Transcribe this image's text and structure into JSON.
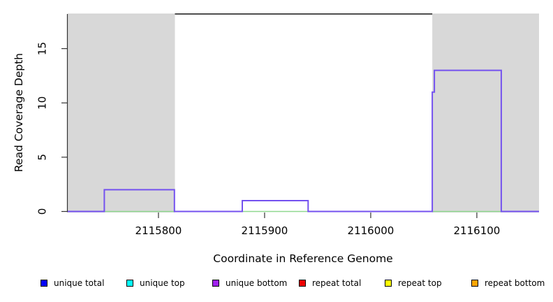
{
  "chart_data": {
    "type": "line",
    "subtype": "step-coverage",
    "title": "",
    "xlabel": "Coordinate in Reference Genome",
    "ylabel": "Read Coverage Depth",
    "xlim": [
      2115714.5,
      2116158.6
    ],
    "ylim": [
      0,
      18.19
    ],
    "x_ticks": [
      2115800,
      2115900,
      2116000,
      2116100
    ],
    "y_ticks": [
      0,
      5,
      10,
      15
    ],
    "grid": false,
    "legend_position": "bottom",
    "shaded_regions": [
      {
        "name": "left-shaded-region",
        "x0": 2115714.5,
        "x1": 2115815.5
      },
      {
        "name": "right-shaded-region",
        "x0": 2116058,
        "x1": 2116158.6
      }
    ],
    "series": [
      {
        "name": "zero-baseline",
        "color": "#90d890",
        "width": 1.5,
        "points": [
          [
            2115714.5,
            0
          ],
          [
            2116158.6,
            0
          ]
        ]
      },
      {
        "name": "unique-coverage-step",
        "color": "#7452ef",
        "width": 2,
        "points": [
          [
            2115714.5,
            0
          ],
          [
            2115749,
            0
          ],
          [
            2115749,
            2
          ],
          [
            2115815,
            2
          ],
          [
            2115815,
            0
          ],
          [
            2115879,
            0
          ],
          [
            2115879,
            1
          ],
          [
            2115941,
            1
          ],
          [
            2115941,
            0
          ],
          [
            2116058,
            0
          ],
          [
            2116058,
            11
          ],
          [
            2116060,
            11
          ],
          [
            2116060,
            13
          ],
          [
            2116123,
            13
          ],
          [
            2116123,
            0
          ],
          [
            2116158.6,
            0
          ]
        ]
      }
    ],
    "legend": [
      {
        "label": "unique total",
        "color": "#0000ff"
      },
      {
        "label": "unique top",
        "color": "#00ffff"
      },
      {
        "label": "unique bottom",
        "color": "#a020f0"
      },
      {
        "label": "repeat total",
        "color": "#ee0000"
      },
      {
        "label": "repeat top",
        "color": "#ffff00"
      },
      {
        "label": "repeat bottom",
        "color": "#ffa500"
      }
    ],
    "colors": {
      "shaded_region": "#d8d8d8",
      "shaded_region_top_edge": "#cfcfcf",
      "frame_top_segment": "#4f4f4f",
      "axis": "#333333",
      "tick_label": "#000000"
    }
  }
}
